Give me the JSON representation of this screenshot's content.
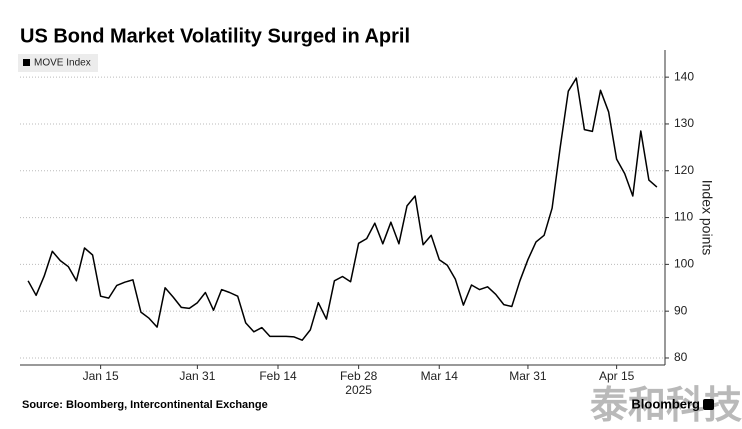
{
  "chart_data": {
    "type": "line",
    "title": "US Bond Market Volatility Surged in April",
    "y_axis_label": "Index points",
    "x_axis_year": "2025",
    "source": "Source: Bloomberg, Intercontinental Exchange",
    "brand": "Bloomberg",
    "watermark": "泰和科技",
    "legend_position": "upper left",
    "grid": true,
    "x": [
      "2025-01-02",
      "2025-01-03",
      "2025-01-06",
      "2025-01-07",
      "2025-01-08",
      "2025-01-09",
      "2025-01-10",
      "2025-01-13",
      "2025-01-14",
      "2025-01-15",
      "2025-01-16",
      "2025-01-17",
      "2025-01-20",
      "2025-01-21",
      "2025-01-22",
      "2025-01-23",
      "2025-01-24",
      "2025-01-27",
      "2025-01-28",
      "2025-01-29",
      "2025-01-30",
      "2025-01-31",
      "2025-02-03",
      "2025-02-04",
      "2025-02-05",
      "2025-02-06",
      "2025-02-07",
      "2025-02-10",
      "2025-02-11",
      "2025-02-12",
      "2025-02-13",
      "2025-02-14",
      "2025-02-17",
      "2025-02-18",
      "2025-02-19",
      "2025-02-20",
      "2025-02-21",
      "2025-02-24",
      "2025-02-25",
      "2025-02-26",
      "2025-02-27",
      "2025-02-28",
      "2025-03-03",
      "2025-03-04",
      "2025-03-05",
      "2025-03-06",
      "2025-03-07",
      "2025-03-10",
      "2025-03-11",
      "2025-03-12",
      "2025-03-13",
      "2025-03-14",
      "2025-03-17",
      "2025-03-18",
      "2025-03-19",
      "2025-03-20",
      "2025-03-21",
      "2025-03-24",
      "2025-03-25",
      "2025-03-26",
      "2025-03-27",
      "2025-03-28",
      "2025-03-31",
      "2025-04-01",
      "2025-04-02",
      "2025-04-03",
      "2025-04-04",
      "2025-04-07",
      "2025-04-08",
      "2025-04-09",
      "2025-04-10",
      "2025-04-11",
      "2025-04-14",
      "2025-04-15",
      "2025-04-16",
      "2025-04-17",
      "2025-04-18",
      "2025-04-21",
      "2025-04-22"
    ],
    "series": [
      {
        "name": "MOVE Index",
        "color": "#000000",
        "values": [
          96.5,
          93.4,
          97.5,
          102.8,
          100.8,
          99.5,
          96.5,
          103.5,
          102,
          93.2,
          92.8,
          95.5,
          96.2,
          96.7,
          89.8,
          88.5,
          86.6,
          95,
          93,
          90.8,
          90.6,
          91.8,
          94,
          90.2,
          94.6,
          94,
          93.2,
          87.5,
          85.6,
          86.5,
          84.6,
          84.6,
          84.6,
          84.5,
          83.8,
          86,
          91.8,
          88.3,
          96.5,
          97.4,
          96.3,
          104.5,
          105.5,
          108.8,
          104.4,
          109,
          104.4,
          112.5,
          114.6,
          104.2,
          106.2,
          101,
          99.8,
          96.8,
          91.3,
          95.6,
          94.6,
          95.2,
          93.6,
          91.4,
          91,
          96.5,
          101,
          104.8,
          106.2,
          112,
          125,
          137,
          139.8,
          128.8,
          128.4,
          137.2,
          132.6,
          122.5,
          119.4,
          114.6,
          128.5,
          118,
          116.5
        ]
      }
    ],
    "xlim": [
      "2025-01-01",
      "2025-04-23"
    ],
    "xticks": [
      {
        "value": "2025-01-15",
        "label": "Jan 15"
      },
      {
        "value": "2025-01-31",
        "label": "Jan 31"
      },
      {
        "value": "2025-02-14",
        "label": "Feb 14"
      },
      {
        "value": "2025-02-28",
        "label": "Feb 28"
      },
      {
        "value": "2025-03-14",
        "label": "Mar 14"
      },
      {
        "value": "2025-03-31",
        "label": "Mar 31"
      },
      {
        "value": "2025-04-15",
        "label": "Apr 15"
      }
    ],
    "ylim": [
      78.5,
      145.8
    ],
    "yticks": [
      80,
      90,
      100,
      110,
      120,
      130,
      140
    ]
  }
}
